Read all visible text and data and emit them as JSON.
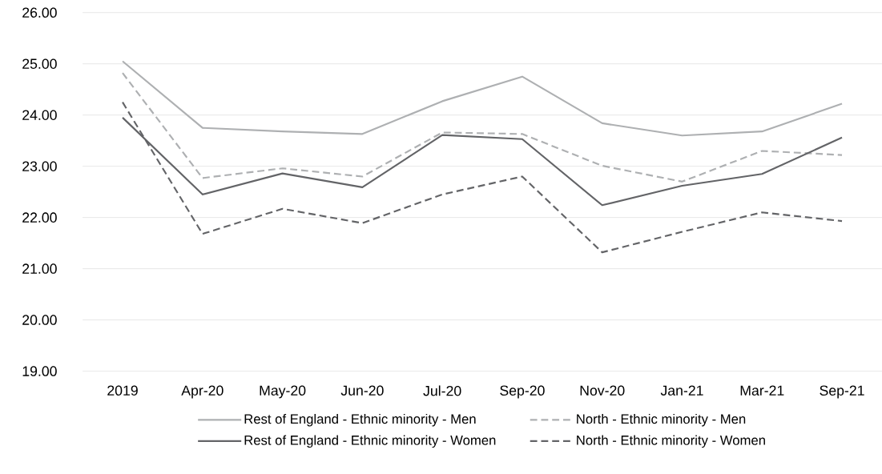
{
  "chart_data": {
    "type": "line",
    "categories": [
      "2019",
      "Apr-20",
      "May-20",
      "Jun-20",
      "Jul-20",
      "Sep-20",
      "Nov-20",
      "Jan-21",
      "Mar-21",
      "Sep-21"
    ],
    "series": [
      {
        "name": "Rest of England - Ethnic minority - Men",
        "color": "#aeb0b2",
        "line_style": "solid",
        "values": [
          25.05,
          23.75,
          23.68,
          23.63,
          24.27,
          24.75,
          23.84,
          23.6,
          23.68,
          24.22
        ]
      },
      {
        "name": "North - Ethnic minority - Men",
        "color": "#aeb0b2",
        "line_style": "dashed",
        "values": [
          24.82,
          22.77,
          22.96,
          22.8,
          23.66,
          23.63,
          23.01,
          22.7,
          23.3,
          23.22
        ]
      },
      {
        "name": "Rest of England - Ethnic minority - Women",
        "color": "#636467",
        "line_style": "solid",
        "values": [
          23.95,
          22.45,
          22.86,
          22.59,
          23.61,
          23.53,
          22.24,
          22.62,
          22.85,
          23.56
        ]
      },
      {
        "name": "North - Ethnic minority - Women",
        "color": "#636467",
        "line_style": "dashed",
        "values": [
          24.25,
          21.68,
          22.17,
          21.89,
          22.45,
          22.8,
          21.32,
          21.72,
          22.1,
          21.93
        ]
      }
    ],
    "ylim": [
      19,
      26
    ],
    "yticks": [
      {
        "value": 19,
        "label": "19.00"
      },
      {
        "value": 20,
        "label": "20.00"
      },
      {
        "value": 21,
        "label": "21.00"
      },
      {
        "value": 22,
        "label": "22.00"
      },
      {
        "value": 23,
        "label": "23.00"
      },
      {
        "value": 24,
        "label": "24.00"
      },
      {
        "value": 25,
        "label": "25.00"
      },
      {
        "value": 26,
        "label": "26.00"
      }
    ],
    "grid": "y",
    "legend": "bottom",
    "marker": "none"
  }
}
